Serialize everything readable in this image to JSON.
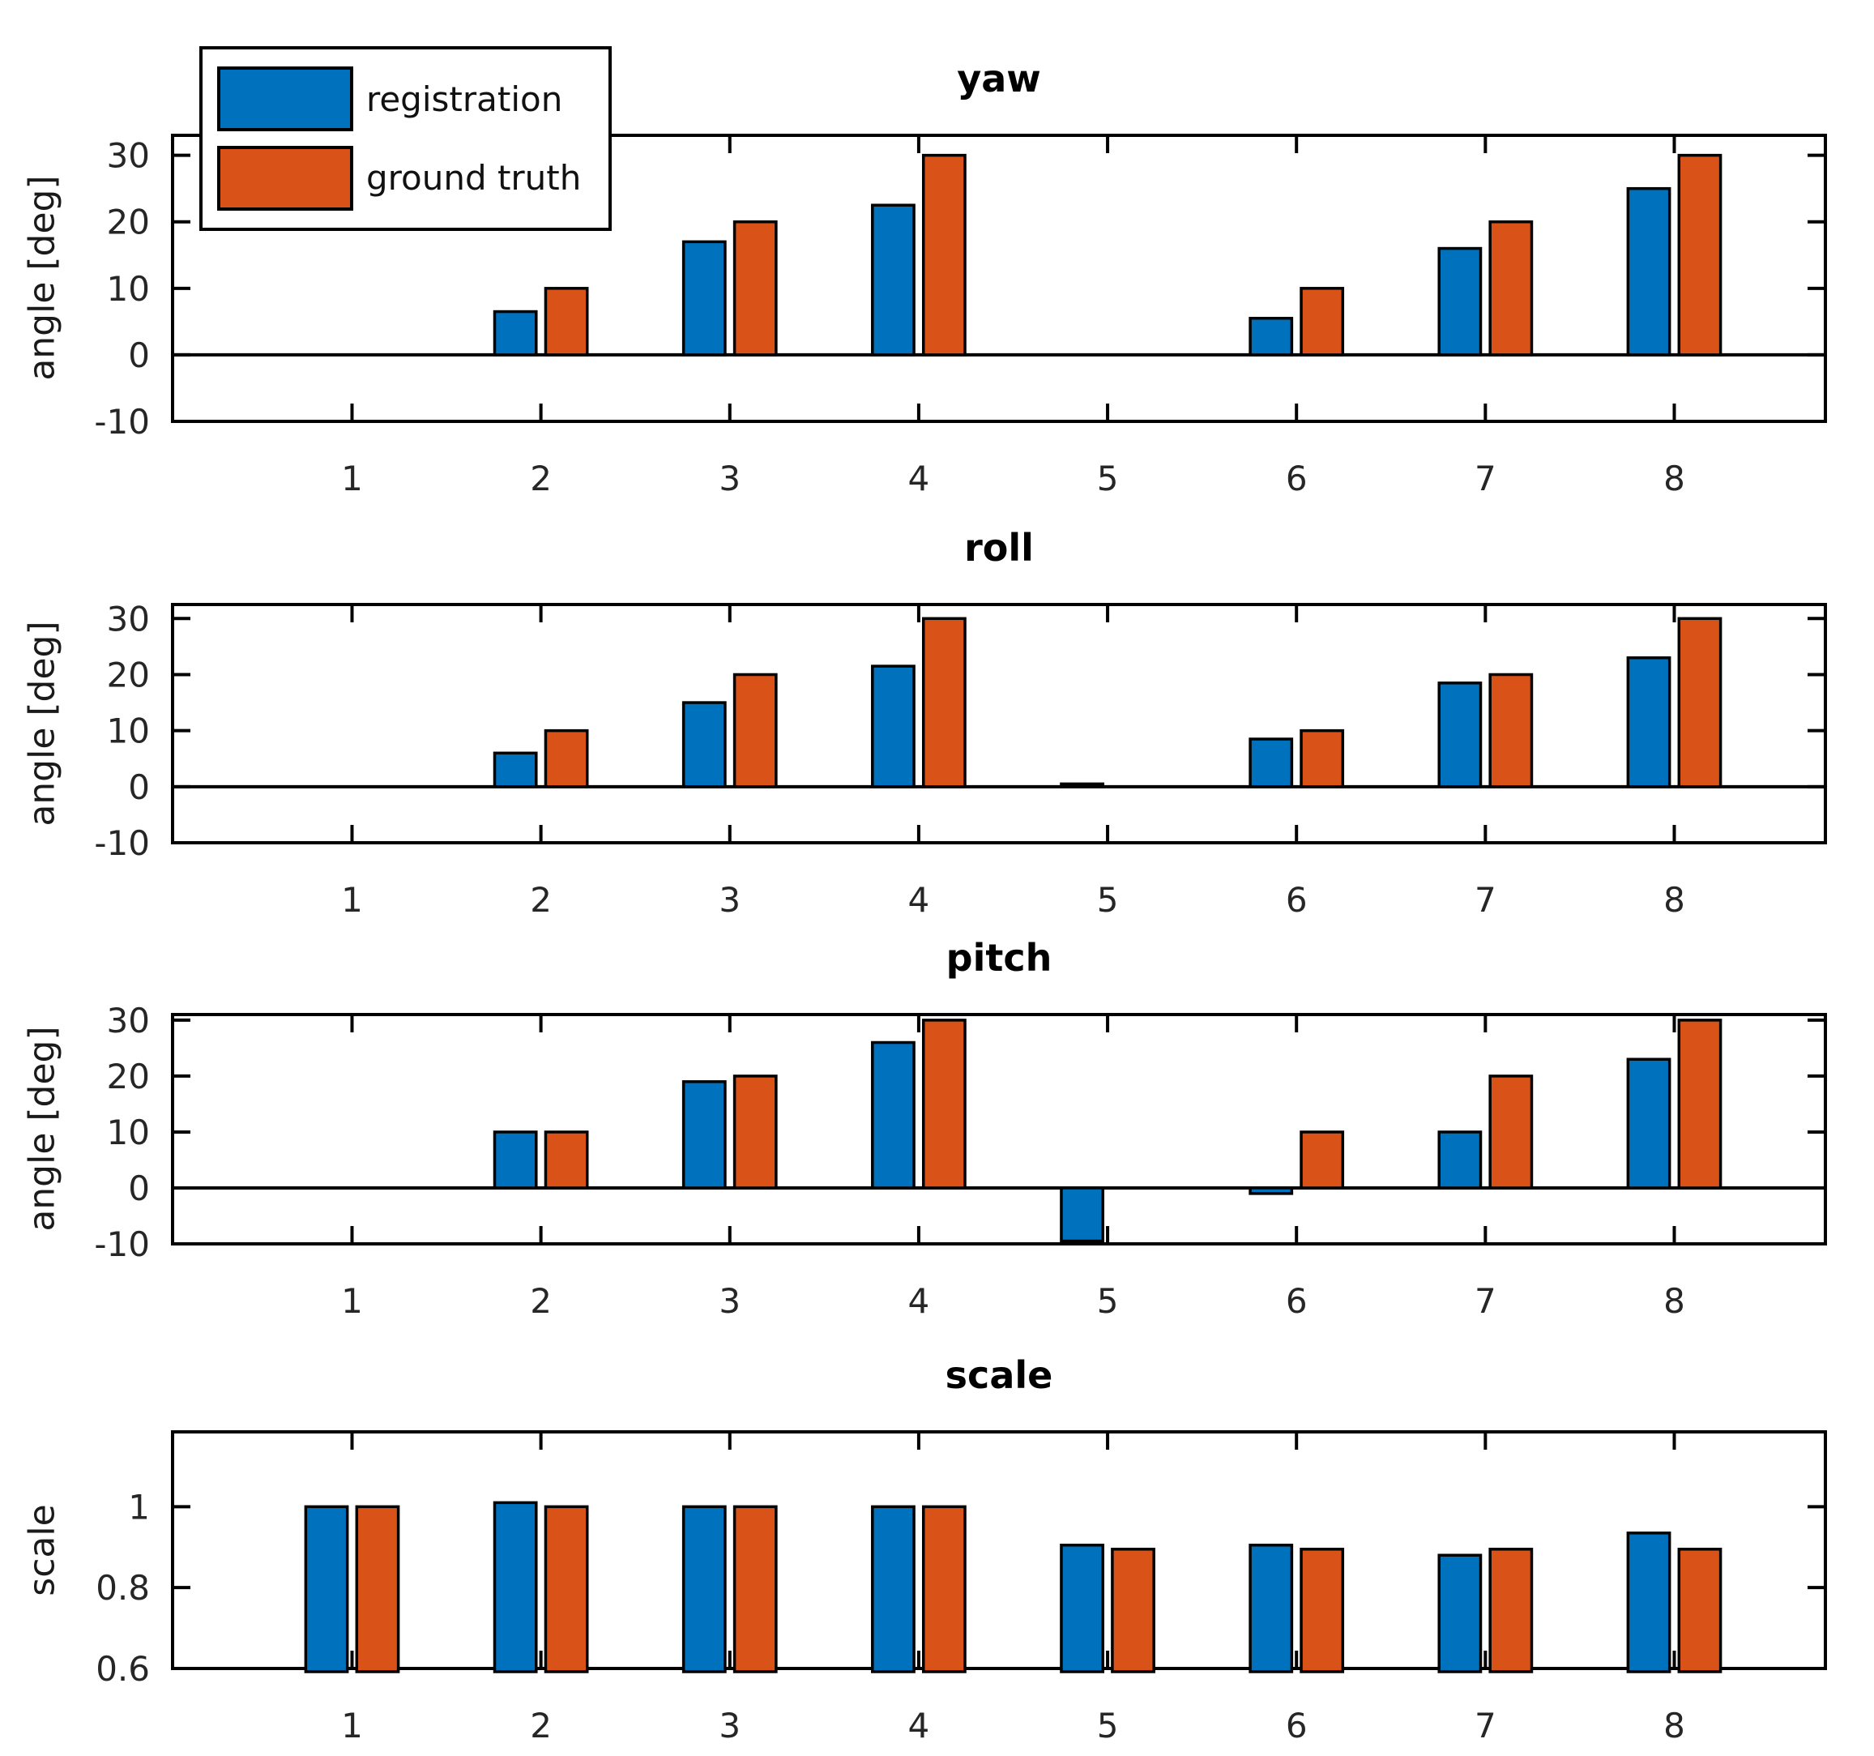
{
  "figure": {
    "background": "#ffffff",
    "axis_color": "#000000",
    "tick_label_color": "#262626",
    "series_colors": [
      "#0072BD",
      "#D95319"
    ],
    "bar_edge_color": "#000000"
  },
  "legend": {
    "position": "top-left",
    "items": [
      {
        "label": "registration",
        "color": "#0072BD"
      },
      {
        "label": "ground truth",
        "color": "#D95319"
      }
    ]
  },
  "chart_data": [
    {
      "type": "bar",
      "title": "yaw",
      "ylabel": "angle [deg]",
      "categories": [
        1,
        2,
        3,
        4,
        5,
        6,
        7,
        8
      ],
      "series": [
        {
          "name": "registration",
          "values": [
            0,
            6.5,
            17,
            22.5,
            0,
            5.5,
            16,
            25
          ]
        },
        {
          "name": "ground truth",
          "values": [
            0,
            10,
            20,
            30,
            0,
            10,
            20,
            30
          ]
        }
      ],
      "baseline": 0,
      "ylim": [
        -10,
        33
      ],
      "yticks": [
        -10,
        0,
        10,
        20,
        30
      ],
      "grid": false,
      "legend": true
    },
    {
      "type": "bar",
      "title": "roll",
      "ylabel": "angle [deg]",
      "categories": [
        1,
        2,
        3,
        4,
        5,
        6,
        7,
        8
      ],
      "series": [
        {
          "name": "registration",
          "values": [
            0,
            6,
            15,
            21.5,
            0.5,
            8.5,
            18.5,
            23
          ]
        },
        {
          "name": "ground truth",
          "values": [
            0,
            10,
            20,
            30,
            0,
            10,
            20,
            30
          ]
        }
      ],
      "baseline": 0,
      "ylim": [
        -10,
        32.5
      ],
      "yticks": [
        -10,
        0,
        10,
        20,
        30
      ],
      "grid": false,
      "legend": false
    },
    {
      "type": "bar",
      "title": "pitch",
      "ylabel": "angle [deg]",
      "categories": [
        1,
        2,
        3,
        4,
        5,
        6,
        7,
        8
      ],
      "series": [
        {
          "name": "registration",
          "values": [
            0,
            10,
            19,
            26,
            -9.5,
            -1,
            10,
            23
          ]
        },
        {
          "name": "ground truth",
          "values": [
            0,
            10,
            20,
            30,
            0,
            10,
            20,
            30
          ]
        }
      ],
      "baseline": 0,
      "ylim": [
        -10,
        31
      ],
      "yticks": [
        -10,
        0,
        10,
        20,
        30
      ],
      "grid": false,
      "legend": false
    },
    {
      "type": "bar",
      "title": "scale",
      "ylabel": "scale",
      "categories": [
        1,
        2,
        3,
        4,
        5,
        6,
        7,
        8
      ],
      "series": [
        {
          "name": "registration",
          "values": [
            1.0,
            1.01,
            1.0,
            1.0,
            0.905,
            0.905,
            0.88,
            0.935
          ]
        },
        {
          "name": "ground truth",
          "values": [
            1.0,
            1.0,
            1.0,
            1.0,
            0.895,
            0.895,
            0.895,
            0.895
          ]
        }
      ],
      "baseline": 0.6,
      "ylim": [
        0.6,
        1.185
      ],
      "yticks": [
        0.6,
        0.8,
        1
      ],
      "grid": false,
      "legend": false
    }
  ]
}
